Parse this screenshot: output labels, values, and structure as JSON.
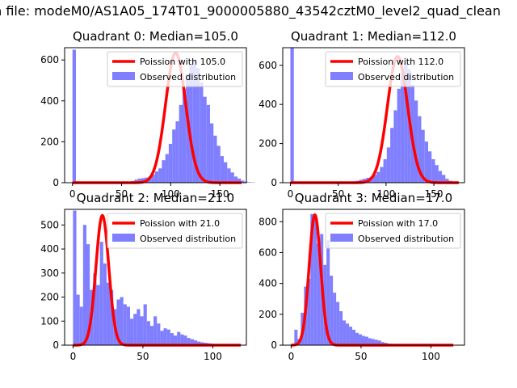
{
  "figure": {
    "suptitle": "n file: modeM0/AS1A05_174T01_9000005880_43542cztM0_level2_quad_clean",
    "colors": {
      "observed": "#7f7fff",
      "poisson": "#ff0000"
    }
  },
  "chart_data": [
    {
      "type": "bar",
      "title": "Quadrant 0: Median=105.0",
      "xticks": [
        0,
        50,
        100,
        150
      ],
      "yticks": [
        0,
        200,
        400,
        600
      ],
      "xlim": [
        -8,
        177
      ],
      "ylim": [
        0,
        660
      ],
      "bin_width": 3.5,
      "bins_start": 0,
      "observed_values": [
        650,
        0,
        0,
        0,
        0,
        0,
        0,
        0,
        0,
        0,
        0,
        0,
        0,
        0,
        0,
        0,
        5,
        8,
        15,
        20,
        22,
        25,
        30,
        40,
        55,
        70,
        110,
        140,
        190,
        260,
        300,
        380,
        460,
        530,
        580,
        600,
        560,
        490,
        420,
        380,
        290,
        230,
        180,
        130,
        100,
        70,
        50,
        30,
        20,
        10,
        5,
        3,
        2
      ],
      "series": [
        {
          "name": "Poission with 105.0",
          "kind": "line",
          "mean": 105.0,
          "peak": 635,
          "x_range": [
            0,
            172
          ]
        },
        {
          "name": "Observed distribution",
          "kind": "hist"
        }
      ]
    },
    {
      "type": "bar",
      "title": "Quadrant 1: Median=112.0",
      "xticks": [
        0,
        50,
        100,
        150
      ],
      "yticks": [
        0,
        200,
        400,
        600
      ],
      "xlim": [
        -8,
        182
      ],
      "ylim": [
        0,
        690
      ],
      "bin_width": 3.6,
      "bins_start": 0,
      "observed_values": [
        690,
        0,
        0,
        0,
        0,
        0,
        0,
        0,
        0,
        0,
        0,
        0,
        0,
        0,
        0,
        0,
        0,
        0,
        5,
        10,
        15,
        20,
        25,
        30,
        40,
        55,
        80,
        120,
        180,
        280,
        370,
        480,
        560,
        610,
        580,
        500,
        420,
        340,
        270,
        210,
        160,
        120,
        90,
        60,
        40,
        20,
        10,
        5,
        3
      ],
      "series": [
        {
          "name": "Poission with 112.0",
          "kind": "line",
          "mean": 112.0,
          "peak": 645,
          "x_range": [
            0,
            176
          ]
        },
        {
          "name": "Observed distribution",
          "kind": "hist"
        }
      ]
    },
    {
      "type": "bar",
      "title": "Quadrant 2: Median=21.0",
      "xticks": [
        0,
        50,
        100
      ],
      "yticks": [
        0,
        100,
        200,
        300,
        400,
        500
      ],
      "xlim": [
        -6,
        124
      ],
      "ylim": [
        0,
        565
      ],
      "bin_width": 2.4,
      "bins_start": 0,
      "observed_values": [
        560,
        210,
        160,
        500,
        420,
        230,
        300,
        250,
        430,
        340,
        260,
        230,
        150,
        190,
        200,
        170,
        160,
        110,
        130,
        150,
        120,
        170,
        100,
        80,
        120,
        90,
        60,
        70,
        65,
        50,
        40,
        55,
        45,
        40,
        30,
        25,
        20,
        15,
        12,
        10,
        8,
        6,
        4,
        3,
        2,
        1,
        1,
        1,
        1,
        1
      ],
      "series": [
        {
          "name": "Poission with 21.0",
          "kind": "line",
          "mean": 21.0,
          "peak": 540,
          "x_range": [
            0,
            120
          ]
        },
        {
          "name": "Observed distribution",
          "kind": "hist"
        }
      ]
    },
    {
      "type": "bar",
      "title": "Quadrant 3: Median=17.0",
      "xticks": [
        0,
        50,
        100
      ],
      "yticks": [
        0,
        200,
        400,
        600,
        800
      ],
      "xlim": [
        -6,
        124
      ],
      "ylim": [
        0,
        880
      ],
      "bin_width": 2.3,
      "bins_start": 0,
      "observed_values": [
        5,
        100,
        40,
        210,
        380,
        430,
        850,
        830,
        660,
        720,
        520,
        680,
        450,
        340,
        280,
        220,
        160,
        140,
        120,
        100,
        80,
        70,
        60,
        55,
        45,
        40,
        35,
        30,
        20,
        15,
        10,
        8,
        6,
        5,
        4,
        3,
        2,
        2,
        1,
        1,
        1,
        1,
        1,
        1,
        1,
        1,
        1,
        1,
        1,
        1
      ],
      "series": [
        {
          "name": "Poission with 17.0",
          "kind": "line",
          "mean": 17.0,
          "peak": 845,
          "x_range": [
            0,
            116
          ]
        },
        {
          "name": "Observed distribution",
          "kind": "hist"
        }
      ]
    }
  ]
}
